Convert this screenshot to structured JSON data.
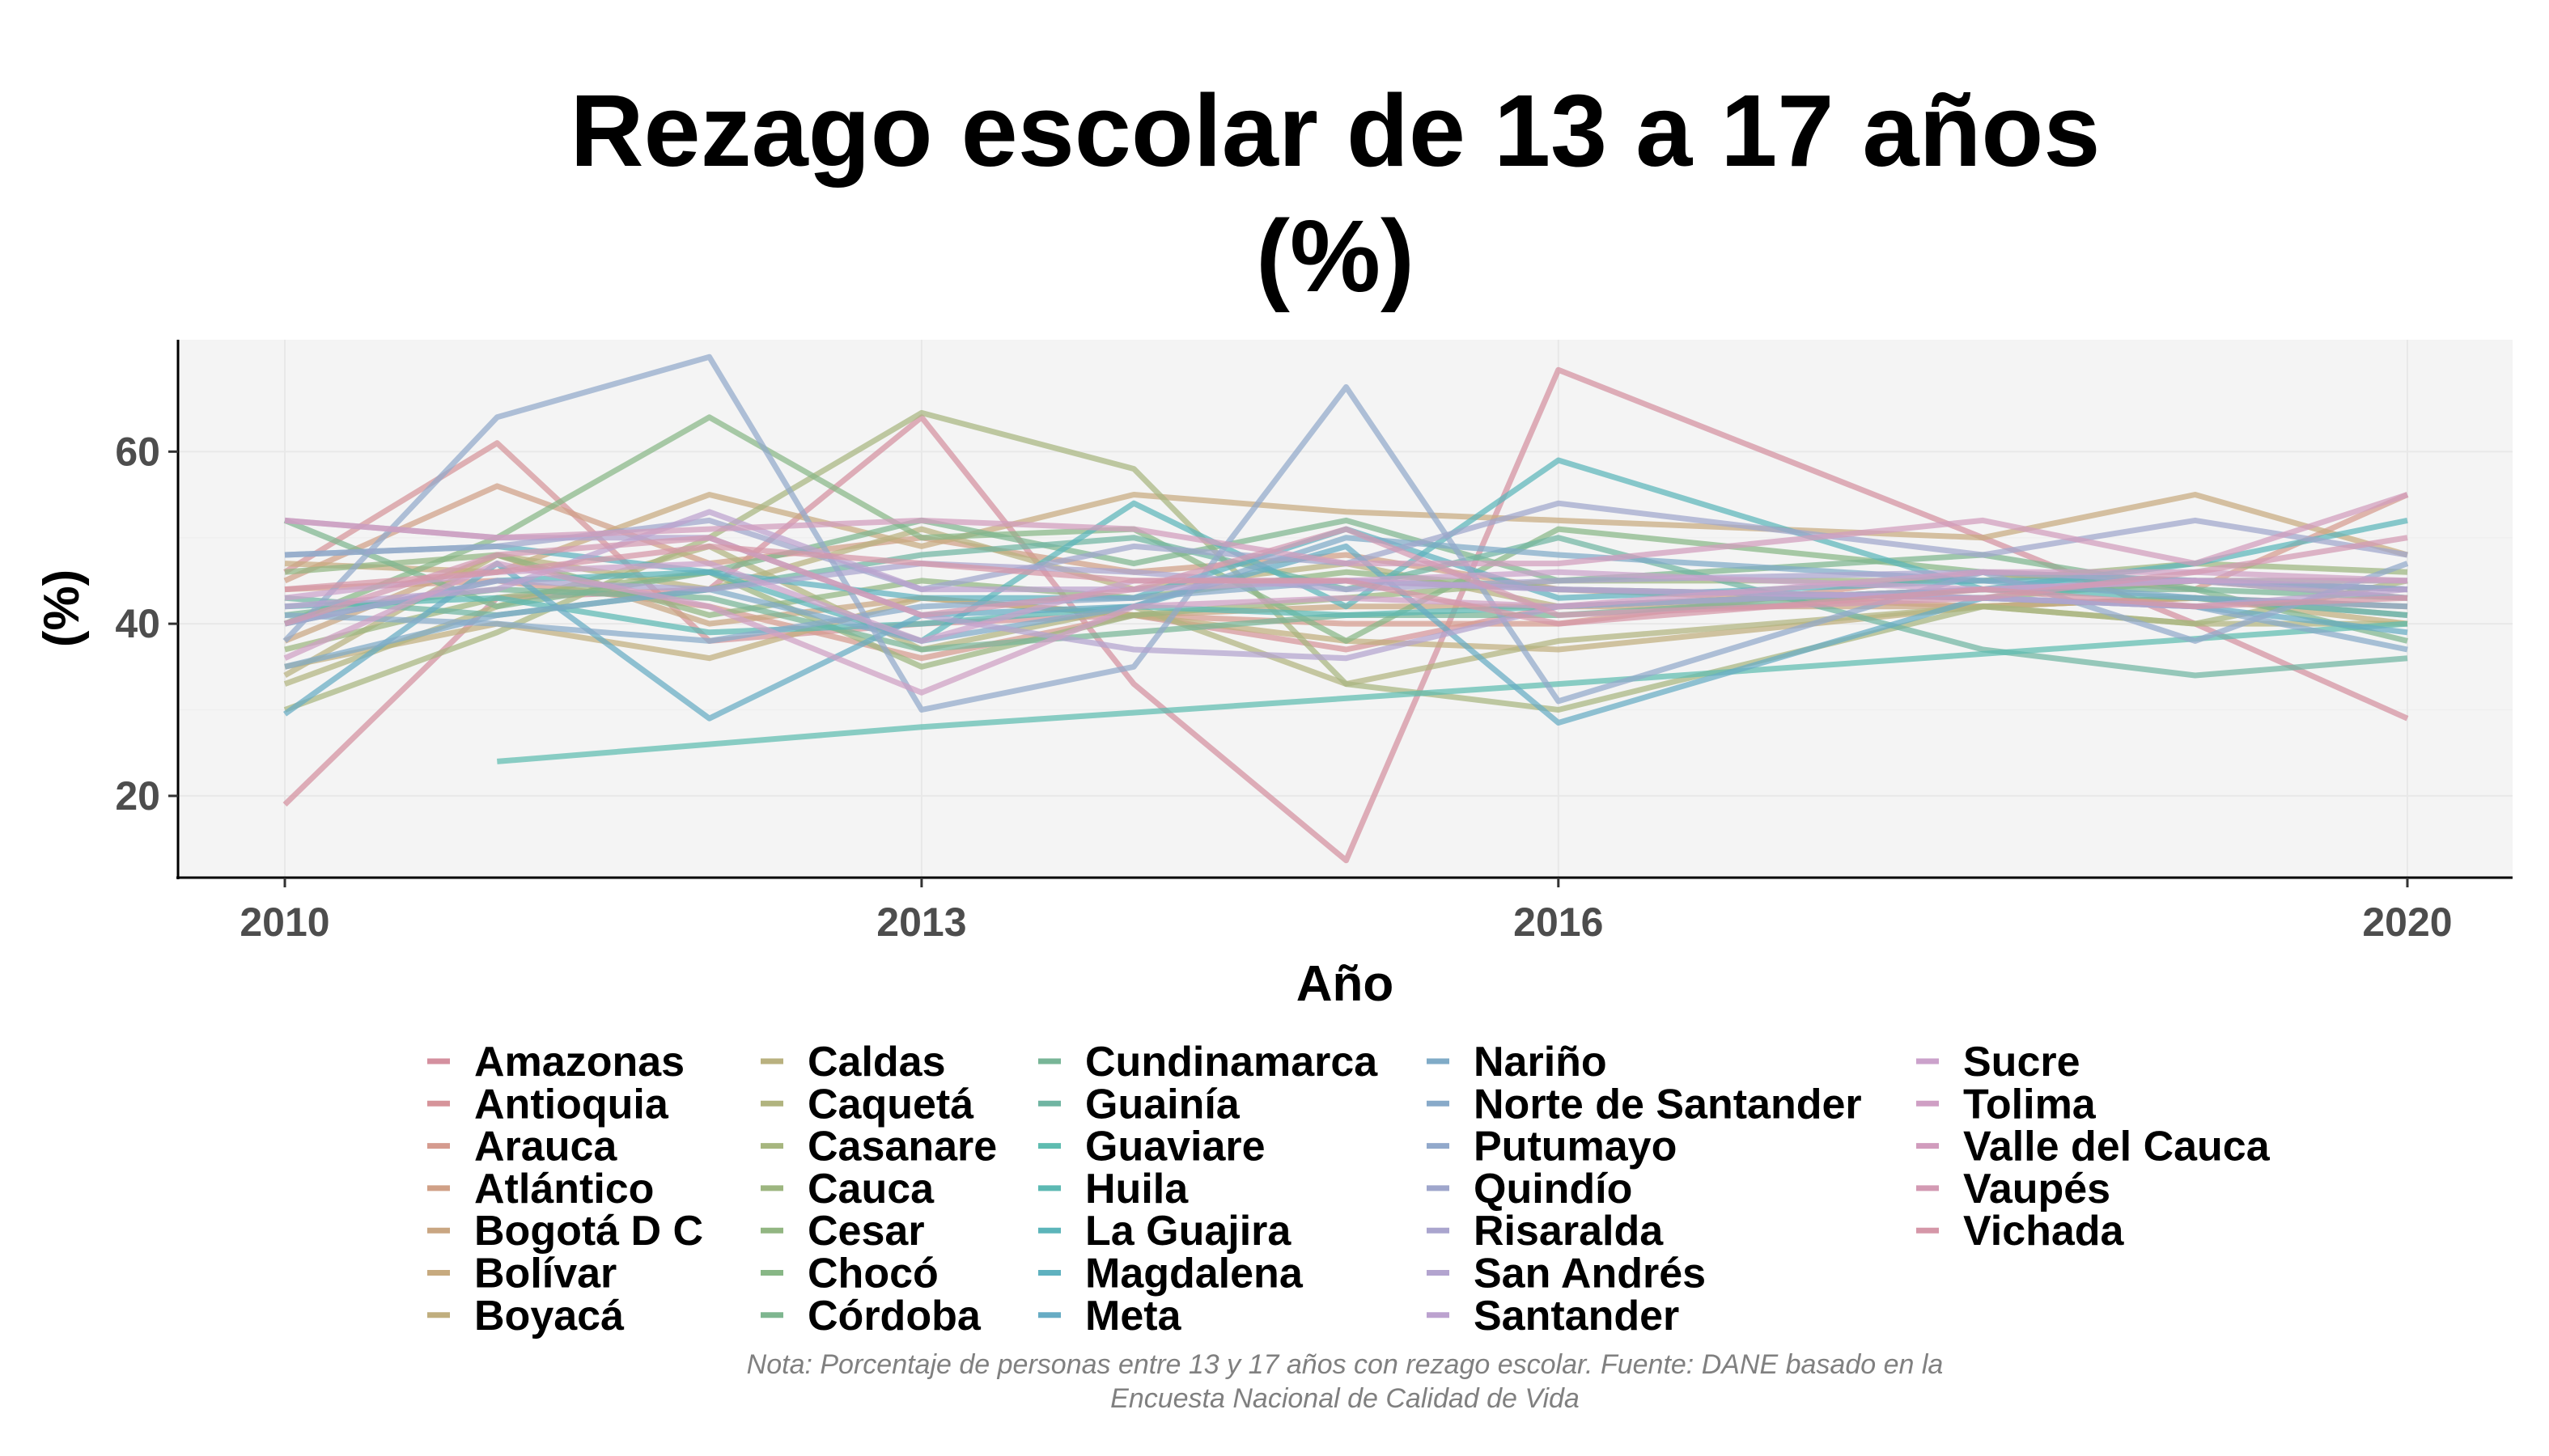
{
  "chart_data": {
    "type": "line",
    "title_lines": [
      "Rezago escolar de 13 a 17 años",
      "(%)"
    ],
    "xlabel": "Año",
    "ylabel": "(%)",
    "xlim": [
      2010,
      2020
    ],
    "ylim": [
      10.5,
      73
    ],
    "xticks": [
      2010,
      2013,
      2016,
      2020
    ],
    "yticks": [
      20,
      40,
      60
    ],
    "grid": true,
    "legend_position": "bottom",
    "caption_lines": [
      "Nota: Porcentaje de personas entre 13 y 17 años con rezago escolar. Fuente: DANE basado en la",
      "Encuesta Nacional de Calidad de Vida"
    ],
    "x": [
      2010,
      2011,
      2012,
      2013,
      2014,
      2015,
      2016,
      2018,
      2019,
      2020
    ],
    "series": [
      {
        "name": "Amazonas",
        "color": "#d4909f",
        "values": [
          19,
          43,
          44,
          64,
          33,
          12.5,
          69.5,
          50,
          40,
          29
        ]
      },
      {
        "name": "Antioquia",
        "color": "#d6949a",
        "values": [
          46,
          61,
          38,
          40,
          41,
          37,
          42,
          44,
          45,
          44
        ]
      },
      {
        "name": "Arauca",
        "color": "#d59b8f",
        "values": [
          44,
          45,
          42,
          36,
          41,
          40,
          40,
          46,
          44,
          55
        ]
      },
      {
        "name": "Atlántico",
        "color": "#d0a087",
        "values": [
          45,
          56,
          47,
          50,
          46,
          48,
          44,
          42,
          43,
          42
        ]
      },
      {
        "name": "Bogotá D C",
        "color": "#c9a682",
        "values": [
          38,
          48,
          40,
          43,
          41,
          42,
          42,
          42,
          43,
          41
        ]
      },
      {
        "name": "Bolívar",
        "color": "#c7aa7f",
        "values": [
          47,
          46,
          55,
          49,
          55,
          53,
          52,
          50,
          55,
          48
        ]
      },
      {
        "name": "Boyacá",
        "color": "#c0ae7e",
        "values": [
          35,
          40,
          36,
          43,
          41,
          38,
          37,
          42,
          43,
          40
        ]
      },
      {
        "name": "Caldas",
        "color": "#b9b17f",
        "values": [
          34,
          48,
          44,
          51,
          44,
          47,
          42,
          44,
          45,
          43
        ]
      },
      {
        "name": "Caquetá",
        "color": "#b1b47f",
        "values": [
          33,
          42,
          49,
          37,
          42,
          33,
          38,
          42,
          40,
          40
        ]
      },
      {
        "name": "Casanare",
        "color": "#a7b67f",
        "values": [
          30,
          39,
          50,
          64.5,
          58,
          33,
          30,
          42,
          40,
          45
        ]
      },
      {
        "name": "Cauca",
        "color": "#9db680",
        "values": [
          37,
          43,
          46,
          35,
          41,
          43,
          45,
          45,
          47,
          46
        ]
      },
      {
        "name": "Cesar",
        "color": "#92b682",
        "values": [
          46,
          48,
          41,
          45,
          43,
          46,
          44,
          43,
          45,
          44
        ]
      },
      {
        "name": "Chocó",
        "color": "#88b786",
        "values": [
          40,
          50,
          64,
          50,
          51,
          38,
          51,
          46,
          45,
          45
        ]
      },
      {
        "name": "Córdoba",
        "color": "#7eb68f",
        "values": [
          52,
          42,
          46,
          52,
          47,
          52,
          45,
          48,
          44,
          38
        ]
      },
      {
        "name": "Cundinamarca",
        "color": "#78b597",
        "values": [
          41,
          44,
          43,
          37,
          39,
          41,
          41,
          44,
          44,
          43
        ]
      },
      {
        "name": "Guainía",
        "color": "#70b5a2",
        "values": [
          43,
          41,
          44,
          48,
          50,
          44,
          50,
          37,
          34,
          36
        ]
      },
      {
        "name": "Guaviare",
        "color": "#5ebcb0",
        "values": [
          null,
          24,
          26,
          28,
          null,
          null,
          33,
          null,
          null,
          40
        ]
      },
      {
        "name": "Huila",
        "color": "#5cb9b3",
        "values": [
          42,
          43,
          39,
          40,
          42,
          41,
          42,
          44,
          43,
          41
        ]
      },
      {
        "name": "La Guajira",
        "color": "#5cb5ba",
        "values": [
          40,
          45,
          46,
          38,
          54,
          42,
          59,
          44,
          47,
          52
        ]
      },
      {
        "name": "Magdalena",
        "color": "#5fb1bf",
        "values": [
          48,
          49,
          46,
          43,
          43,
          51,
          43,
          45,
          45,
          44
        ]
      },
      {
        "name": "Meta",
        "color": "#67acc4",
        "values": [
          29.5,
          47,
          29,
          41,
          42,
          49,
          28.5,
          43,
          42,
          39
        ]
      },
      {
        "name": "Nariño",
        "color": "#80abc7",
        "values": [
          35,
          41,
          44,
          38,
          42,
          50,
          48,
          45,
          43,
          42
        ]
      },
      {
        "name": "Norte de Santander",
        "color": "#88aac9",
        "values": [
          41,
          40,
          38,
          42,
          43,
          45,
          44,
          43,
          42,
          37
        ]
      },
      {
        "name": "Putumayo",
        "color": "#92a9cb",
        "values": [
          38,
          64,
          71,
          30,
          35,
          67.5,
          31,
          46,
          38,
          47
        ]
      },
      {
        "name": "Quindío",
        "color": "#9fa6cc",
        "values": [
          48,
          49,
          52,
          44,
          49,
          47,
          54,
          48,
          52,
          48
        ]
      },
      {
        "name": "Risaralda",
        "color": "#aaa5ce",
        "values": [
          40,
          45,
          44,
          47,
          46,
          44,
          45,
          46,
          45,
          44
        ]
      },
      {
        "name": "San Andrés",
        "color": "#b3a4cf",
        "values": [
          52,
          50,
          50,
          41,
          37,
          36,
          42,
          44,
          45,
          43
        ]
      },
      {
        "name": "Santander",
        "color": "#bca2cf",
        "values": [
          42,
          44,
          53,
          44,
          44,
          45,
          44,
          43,
          42,
          44
        ]
      },
      {
        "name": "Sucre",
        "color": "#cba2cb",
        "values": [
          43,
          46,
          47,
          38,
          45,
          45,
          46,
          44,
          45,
          45
        ]
      },
      {
        "name": "Tolima",
        "color": "#cf9fc4",
        "values": [
          36,
          47,
          42,
          32,
          42,
          43,
          42,
          46,
          46,
          45
        ]
      },
      {
        "name": "Valle del Cauca",
        "color": "#d19cbd",
        "values": [
          52,
          50,
          51,
          52,
          51,
          47,
          47,
          52,
          47,
          55
        ]
      },
      {
        "name": "Vaupés",
        "color": "#d39ab3",
        "values": [
          40,
          48,
          50,
          41,
          44,
          51,
          41,
          43,
          46,
          50
        ]
      },
      {
        "name": "Vichada",
        "color": "#d597a8",
        "values": [
          44,
          46,
          49,
          47,
          45,
          45,
          40,
          44,
          42,
          43
        ]
      }
    ]
  }
}
